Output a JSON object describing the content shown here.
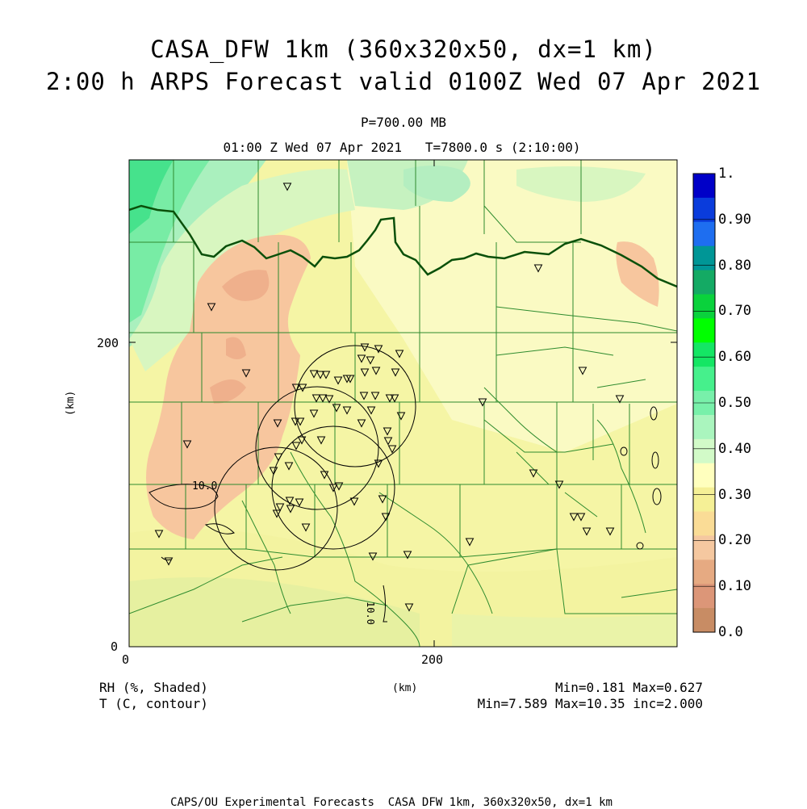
{
  "title": {
    "line1": "CASA_DFW 1km (360x320x50, dx=1 km)",
    "line2": "2:00 h ARPS Forecast valid 0100Z Wed 07 Apr 2021"
  },
  "subtitle": {
    "pressure": "P=700.00 MB",
    "time": "01:00 Z Wed 07 Apr 2021   T=7800.0 s (2:10:00)"
  },
  "axes": {
    "x_ticks": [
      "0",
      "200"
    ],
    "y_ticks": [
      "0",
      "200"
    ],
    "x_label": "(km)",
    "y_label": "(km)"
  },
  "colorbar": {
    "labels": [
      "1.",
      "0.90",
      "0.80",
      "0.70",
      "0.60",
      "0.50",
      "0.40",
      "0.30",
      "0.20",
      "0.10",
      "0.0"
    ],
    "colors": [
      "#0000c8",
      "#0a3cdc",
      "#1e6ef0",
      "#009696",
      "#14aa64",
      "#0ad23c",
      "#00ff00",
      "#14e664",
      "#46f08c",
      "#78f0aa",
      "#aaf5be",
      "#d2fac8",
      "#ffffbe",
      "#f5f096",
      "#fadc96",
      "#f5c8a0",
      "#e6aa82",
      "#dc9678",
      "#c88c64"
    ]
  },
  "contour_labels": [
    "10.0",
    "10.0"
  ],
  "legend": {
    "left1": "RH (%, Shaded)",
    "left2": "T (C, contour)",
    "center": "(km)",
    "right1": "Min=0.181 Max=0.627",
    "right2": "Min=7.589 Max=10.35 inc=2.000"
  },
  "footer": "CAPS/OU Experimental Forecasts  CASA DFW 1km, 360x320x50, dx=1 km",
  "map": {
    "fields": "RH shaded, T contour",
    "station_count": 60
  }
}
